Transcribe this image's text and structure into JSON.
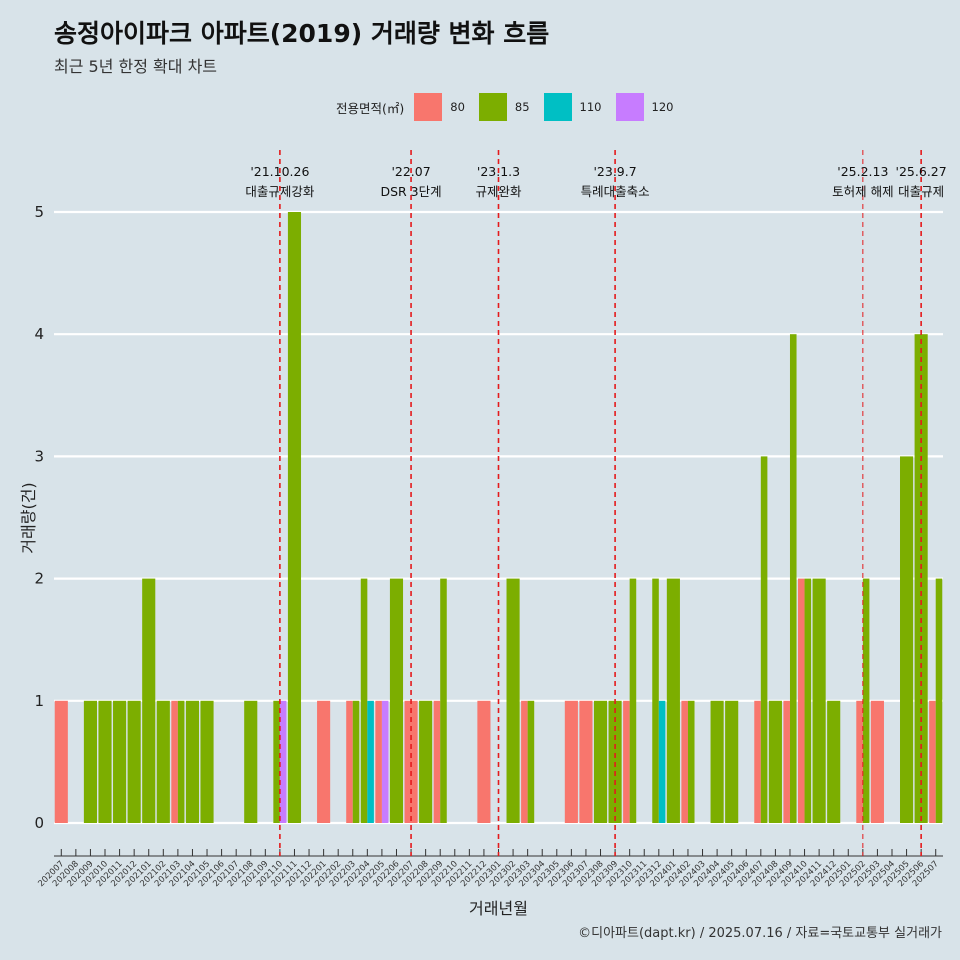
{
  "title": "송정아이파크 아파트(2019) 거래량 변화 흐름",
  "subtitle": "최근 5년 한정 확대 차트",
  "caption": "©디아파트(dapt.kr) / 2025.07.16 / 자료=국토교통부 실거래가",
  "legend": {
    "title": "전용면적(㎡)",
    "items": [
      {
        "label": "80",
        "color": "#F8766D"
      },
      {
        "label": "85",
        "color": "#7CAE00"
      },
      {
        "label": "110",
        "color": "#00BFC4"
      },
      {
        "label": "120",
        "color": "#C77CFF"
      }
    ]
  },
  "chart_data": {
    "type": "bar",
    "stacked": "dodge",
    "xlabel": "거래년월",
    "ylabel": "거래량(건)",
    "ylim": [
      0,
      5
    ],
    "yticks": [
      0,
      1,
      2,
      3,
      4,
      5
    ],
    "categories": [
      "202007",
      "202008",
      "202009",
      "202010",
      "202011",
      "202012",
      "202101",
      "202102",
      "202103",
      "202104",
      "202105",
      "202106",
      "202107",
      "202108",
      "202109",
      "202110",
      "202111",
      "202112",
      "202201",
      "202202",
      "202203",
      "202204",
      "202205",
      "202206",
      "202207",
      "202208",
      "202209",
      "202210",
      "202211",
      "202212",
      "202301",
      "202302",
      "202303",
      "202304",
      "202305",
      "202306",
      "202307",
      "202308",
      "202309",
      "202310",
      "202311",
      "202312",
      "202401",
      "202402",
      "202403",
      "202404",
      "202405",
      "202406",
      "202407",
      "202408",
      "202409",
      "202410",
      "202411",
      "202412",
      "202501",
      "202502",
      "202503",
      "202504",
      "202505",
      "202506",
      "202507"
    ],
    "records": [
      {
        "month": "202007",
        "area": "80",
        "count": 1
      },
      {
        "month": "202009",
        "area": "85",
        "count": 1
      },
      {
        "month": "202010",
        "area": "85",
        "count": 1
      },
      {
        "month": "202011",
        "area": "85",
        "count": 1
      },
      {
        "month": "202012",
        "area": "85",
        "count": 1
      },
      {
        "month": "202101",
        "area": "85",
        "count": 2
      },
      {
        "month": "202102",
        "area": "85",
        "count": 1
      },
      {
        "month": "202103",
        "area": "80",
        "count": 1
      },
      {
        "month": "202103",
        "area": "85",
        "count": 1
      },
      {
        "month": "202104",
        "area": "85",
        "count": 1
      },
      {
        "month": "202105",
        "area": "85",
        "count": 1
      },
      {
        "month": "202108",
        "area": "85",
        "count": 1
      },
      {
        "month": "202110",
        "area": "85",
        "count": 1
      },
      {
        "month": "202110",
        "area": "120",
        "count": 1
      },
      {
        "month": "202111",
        "area": "85",
        "count": 5
      },
      {
        "month": "202201",
        "area": "80",
        "count": 1
      },
      {
        "month": "202203",
        "area": "80",
        "count": 1
      },
      {
        "month": "202203",
        "area": "85",
        "count": 1
      },
      {
        "month": "202204",
        "area": "85",
        "count": 2
      },
      {
        "month": "202204",
        "area": "110",
        "count": 1
      },
      {
        "month": "202205",
        "area": "80",
        "count": 1
      },
      {
        "month": "202205",
        "area": "120",
        "count": 1
      },
      {
        "month": "202206",
        "area": "85",
        "count": 2
      },
      {
        "month": "202207",
        "area": "80",
        "count": 1
      },
      {
        "month": "202208",
        "area": "85",
        "count": 1
      },
      {
        "month": "202209",
        "area": "80",
        "count": 1
      },
      {
        "month": "202209",
        "area": "85",
        "count": 2
      },
      {
        "month": "202212",
        "area": "80",
        "count": 1
      },
      {
        "month": "202302",
        "area": "85",
        "count": 2
      },
      {
        "month": "202303",
        "area": "80",
        "count": 1
      },
      {
        "month": "202303",
        "area": "85",
        "count": 1
      },
      {
        "month": "202306",
        "area": "80",
        "count": 1
      },
      {
        "month": "202307",
        "area": "80",
        "count": 1
      },
      {
        "month": "202308",
        "area": "85",
        "count": 1
      },
      {
        "month": "202309",
        "area": "85",
        "count": 1
      },
      {
        "month": "202310",
        "area": "80",
        "count": 1
      },
      {
        "month": "202310",
        "area": "85",
        "count": 2
      },
      {
        "month": "202312",
        "area": "85",
        "count": 2
      },
      {
        "month": "202312",
        "area": "110",
        "count": 1
      },
      {
        "month": "202401",
        "area": "85",
        "count": 2
      },
      {
        "month": "202402",
        "area": "80",
        "count": 1
      },
      {
        "month": "202402",
        "area": "85",
        "count": 1
      },
      {
        "month": "202404",
        "area": "85",
        "count": 1
      },
      {
        "month": "202405",
        "area": "85",
        "count": 1
      },
      {
        "month": "202407",
        "area": "80",
        "count": 1
      },
      {
        "month": "202407",
        "area": "85",
        "count": 3
      },
      {
        "month": "202408",
        "area": "85",
        "count": 1
      },
      {
        "month": "202409",
        "area": "80",
        "count": 1
      },
      {
        "month": "202409",
        "area": "85",
        "count": 4
      },
      {
        "month": "202410",
        "area": "80",
        "count": 2
      },
      {
        "month": "202410",
        "area": "85",
        "count": 2
      },
      {
        "month": "202411",
        "area": "85",
        "count": 2
      },
      {
        "month": "202412",
        "area": "85",
        "count": 1
      },
      {
        "month": "202502",
        "area": "80",
        "count": 1
      },
      {
        "month": "202502",
        "area": "85",
        "count": 2
      },
      {
        "month": "202503",
        "area": "80",
        "count": 1
      },
      {
        "month": "202505",
        "area": "85",
        "count": 3
      },
      {
        "month": "202506",
        "area": "85",
        "count": 4
      },
      {
        "month": "202507",
        "area": "80",
        "count": 1
      },
      {
        "month": "202507",
        "area": "85",
        "count": 2
      }
    ],
    "events": [
      {
        "month": "202110",
        "date": "'21.10.26",
        "label": "대출규제강화"
      },
      {
        "month": "202207",
        "date": "'22.07",
        "label": "DSR 3단계"
      },
      {
        "month": "202301",
        "date": "'23.1.3",
        "label": "규제완화"
      },
      {
        "month": "202309",
        "date": "'23.9.7",
        "label": "특례대출축소"
      },
      {
        "month": "202502",
        "date": "'25.2.13",
        "label": "토허제 해제"
      },
      {
        "month": "202506",
        "date": "'25.6.27",
        "label": "대출규제"
      }
    ]
  }
}
